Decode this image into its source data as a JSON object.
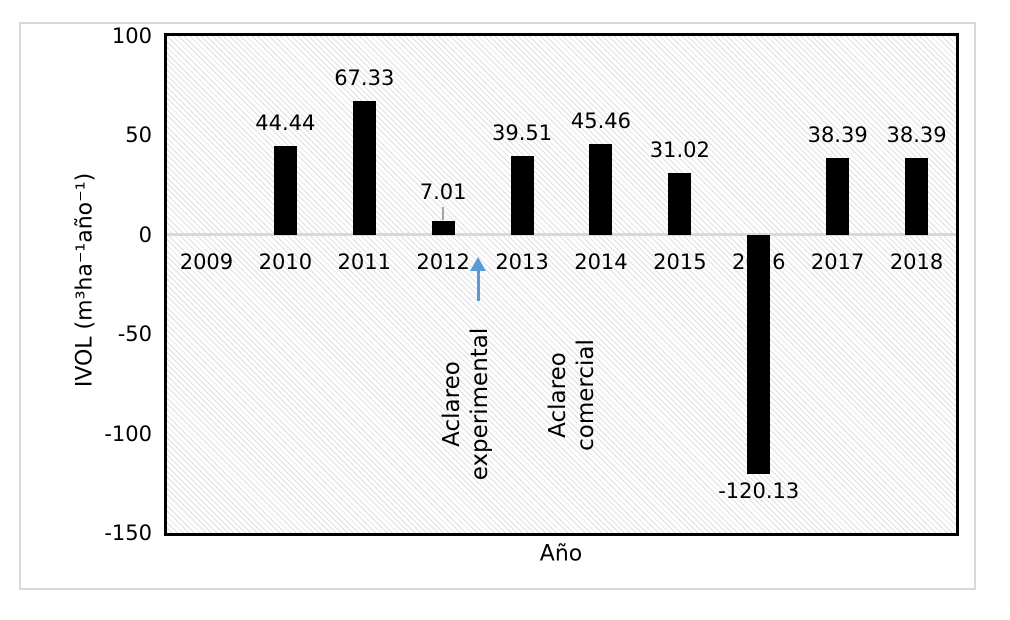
{
  "chart_data": {
    "type": "bar",
    "title": "",
    "xlabel": "Año",
    "ylabel": "IVOL (m³ha⁻¹año⁻¹)",
    "categories": [
      "2009",
      "2010",
      "2011",
      "2012",
      "2013",
      "2014",
      "2015",
      "2016",
      "2017",
      "2018"
    ],
    "values": [
      null,
      44.44,
      67.33,
      7.01,
      39.51,
      45.46,
      31.02,
      -120.13,
      38.39,
      38.39
    ],
    "data_labels": [
      "",
      "44.44",
      "67.33",
      "7.01",
      "39.51",
      "45.46",
      "31.02",
      "-120.13",
      "38.39",
      "38.39"
    ],
    "ylim": [
      -150,
      100
    ],
    "yticks": [
      100,
      50,
      0,
      -50,
      -100,
      -150
    ],
    "ytick_labels": [
      "100",
      "50",
      "0",
      "-50",
      "-100",
      "-150"
    ],
    "grid": false,
    "legend": "none",
    "bar_color": "#000000",
    "plot_background": "white with light gray downward-diagonal hatch pattern",
    "label_leader_category": "2012",
    "annotations": [
      {
        "type": "rotated-text",
        "lines": [
          "Aclareo",
          "experimental"
        ],
        "near_category": "2012"
      },
      {
        "type": "rotated-text",
        "lines": [
          "Aclareo",
          "comercial"
        ],
        "near_category": "2014"
      },
      {
        "type": "arrow-up",
        "color": "#5b9bd5",
        "near_category": "2012"
      }
    ]
  },
  "colors": {
    "bar": "#000000",
    "figure_border": "#d9d9d9",
    "plot_border": "#000000",
    "hatch_line": "#e0e0e0",
    "zero_line": "#d9d9d9",
    "arrow": "#5b9bd5",
    "leader_line": "#a6a6a6",
    "text": "#000000"
  }
}
